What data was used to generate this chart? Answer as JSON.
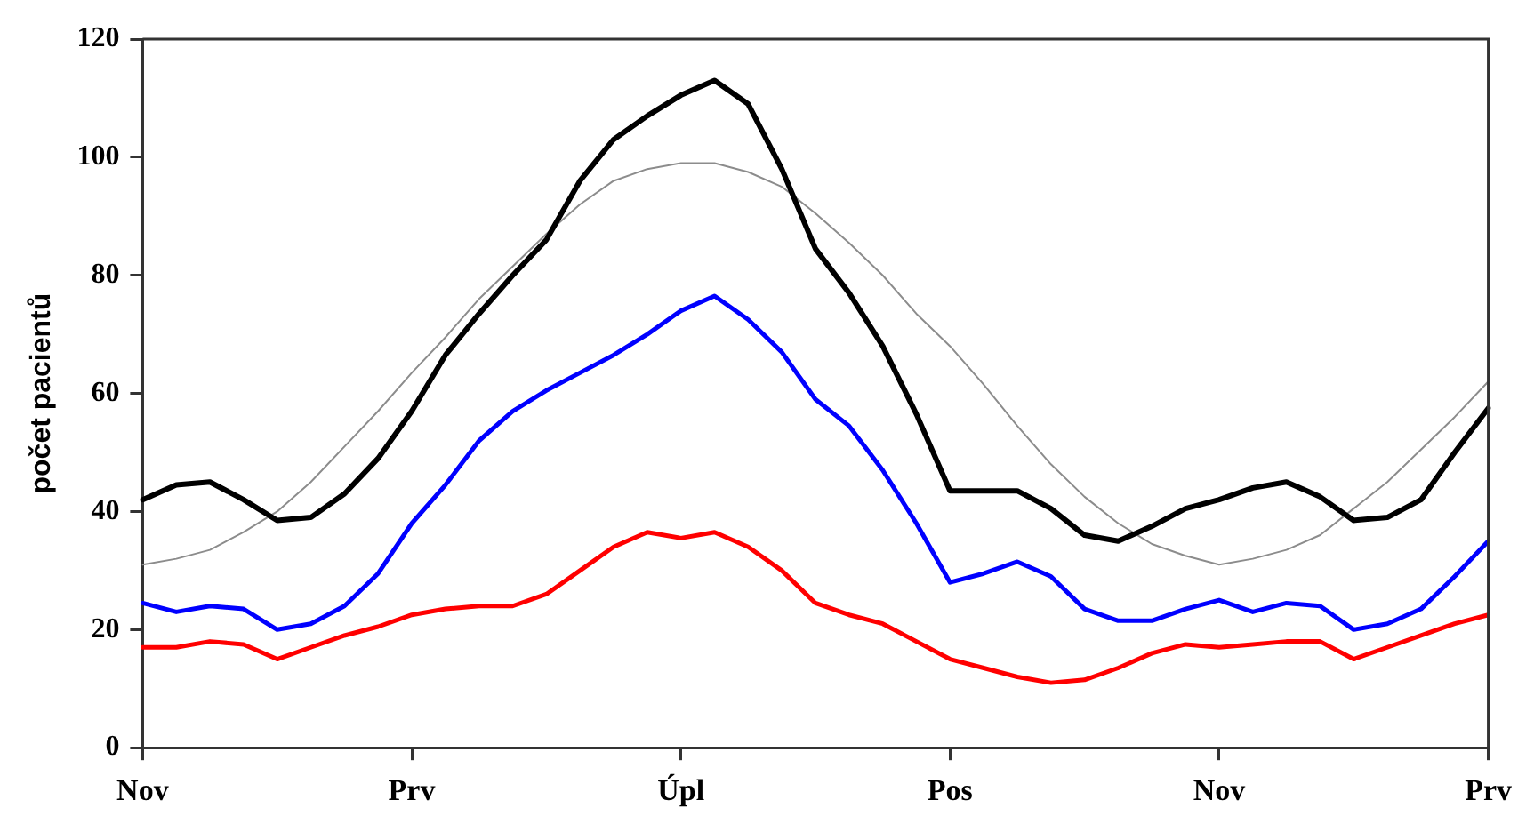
{
  "chart_data": {
    "type": "line",
    "ylabel": "počet pacientů",
    "categories": [
      "Nov",
      null,
      null,
      null,
      null,
      null,
      null,
      null,
      "Prv",
      null,
      null,
      null,
      null,
      null,
      null,
      null,
      "Úpl",
      null,
      null,
      null,
      null,
      null,
      null,
      null,
      "Pos",
      null,
      null,
      null,
      null,
      null,
      null,
      null,
      "Nov",
      null,
      null,
      null,
      null,
      null,
      null,
      null,
      "Prv"
    ],
    "ylim": [
      0,
      120
    ],
    "yticks": [
      0,
      20,
      40,
      60,
      80,
      100,
      120
    ],
    "grid": false,
    "legend": false,
    "marker": "none",
    "line_style": "solid",
    "series": [
      {
        "color": "#000000",
        "values": [
          42,
          44.5,
          45,
          42,
          38.5,
          39,
          43,
          49,
          57,
          66.5,
          73.5,
          80,
          86,
          96,
          103,
          107,
          110.5,
          113,
          109,
          98,
          84.5,
          77,
          68,
          56.5,
          43.5,
          43.5,
          43.5,
          40.5,
          36,
          35,
          37.5,
          40.5,
          42,
          44,
          45,
          42.5,
          38.5,
          39,
          42,
          50,
          57.5
        ]
      },
      {
        "color": "#8c8c8c",
        "values": [
          31,
          32,
          33.5,
          36.5,
          40,
          45,
          51,
          57,
          63.5,
          69.5,
          76,
          81.5,
          87,
          92,
          96,
          98,
          99,
          99,
          97.5,
          95,
          90.5,
          85.5,
          80,
          73.5,
          68,
          61.5,
          54.5,
          48,
          42.5,
          38,
          34.5,
          32.5,
          31,
          32,
          33.5,
          36,
          40.5,
          45,
          50.5,
          56,
          62
        ]
      },
      {
        "color": "#0000ff",
        "values": [
          24.5,
          23,
          24,
          23.5,
          20,
          21,
          24,
          29.5,
          38,
          44.5,
          52,
          57,
          60.5,
          63.5,
          66.5,
          70,
          74,
          76.5,
          72.5,
          67,
          59,
          54.5,
          47,
          38,
          28,
          29.5,
          31.5,
          29,
          23.5,
          21.5,
          21.5,
          23.5,
          25,
          23,
          24.5,
          24,
          20,
          21,
          23.5,
          29,
          35
        ]
      },
      {
        "color": "#ff0000",
        "values": [
          17,
          17,
          18,
          17.5,
          15,
          17,
          19,
          20.5,
          22.5,
          23.5,
          24,
          24,
          26,
          30,
          34,
          36.5,
          35.5,
          36.5,
          34,
          30,
          24.5,
          22.5,
          21,
          18,
          15,
          13.5,
          12,
          11,
          11.5,
          13.5,
          16,
          17.5,
          17,
          17.5,
          18,
          18,
          15,
          17,
          19,
          21,
          22.5
        ]
      }
    ]
  }
}
